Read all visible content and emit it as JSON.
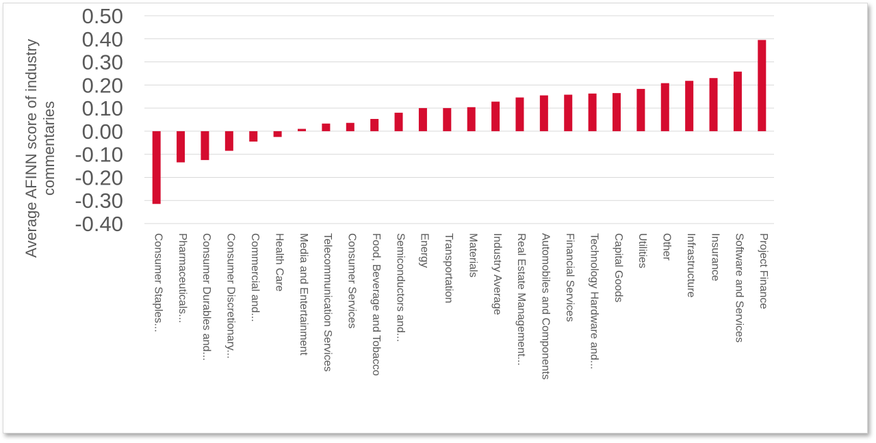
{
  "chart_data": {
    "type": "bar",
    "ylabel": "Average AFINN score of industry commentaries",
    "ylabel_lines": [
      "Average AFINN score of industry",
      "commentaries"
    ],
    "ylim": [
      -0.4,
      0.5
    ],
    "yticks": [
      "0.50",
      "0.40",
      "0.30",
      "0.20",
      "0.10",
      "0.00",
      "-0.10",
      "-0.20",
      "-0.30",
      "-0.40"
    ],
    "grid": true,
    "legend": "none",
    "bar_color": "#d50c2f",
    "categories": [
      "Consumer Staples...",
      "Pharmaceuticals...",
      "Consumer Durables and...",
      "Consumer Discretionary...",
      "Commercial and...",
      "Health Care",
      "Media and Entertainment",
      "Telecommunication Services",
      "Consumer Services",
      "Food, Beverage and Tobacco",
      "Semiconductors and...",
      "Energy",
      "Transportation",
      "Materials",
      "Industry Average",
      "Real Estate Management...",
      "Automobiles and Components",
      "Financial Services",
      "Technology Hardware and...",
      "Capital Goods",
      "Utilities",
      "Other",
      "Infrastructure",
      "Insurance",
      "Software and Services",
      "Project Finance"
    ],
    "values": [
      -0.315,
      -0.135,
      -0.125,
      -0.085,
      -0.045,
      -0.025,
      0.01,
      0.033,
      0.036,
      0.053,
      0.08,
      0.1,
      0.1,
      0.104,
      0.128,
      0.146,
      0.155,
      0.158,
      0.163,
      0.165,
      0.183,
      0.208,
      0.218,
      0.23,
      0.258,
      0.395
    ]
  }
}
